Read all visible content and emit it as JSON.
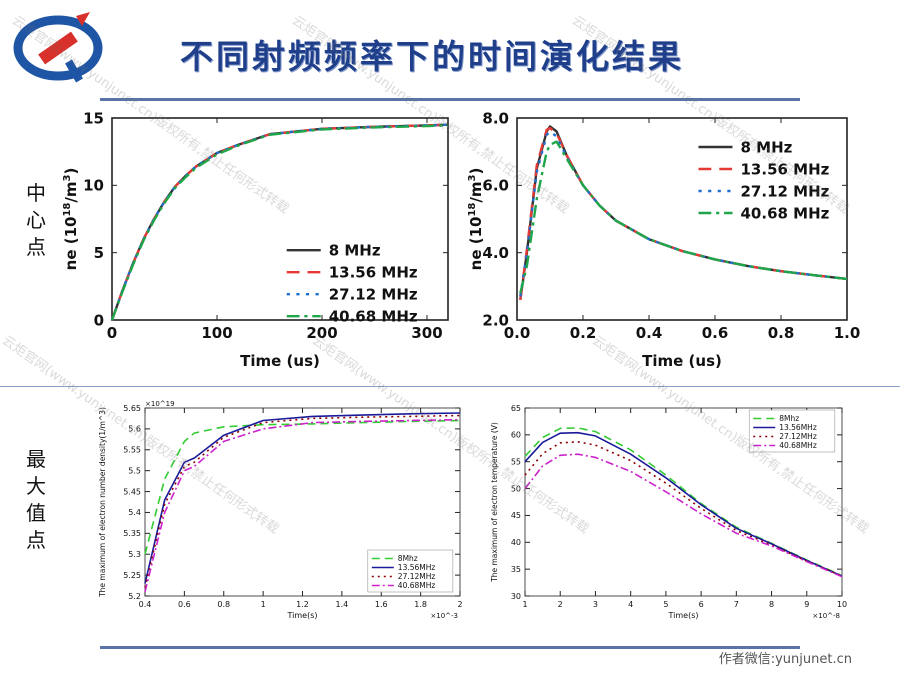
{
  "page": {
    "title": "不同射频频率下的时间演化结果",
    "side_label_top": "中心点",
    "side_label_bottom": "最大值点",
    "footer": "作者微信:yunjunet.cn",
    "watermark": "云炬官网(www.yunjunet.cn)版权所有,禁止任何形式转载",
    "colors": {
      "title": "#1f3f8a",
      "rule": "#5a74a8",
      "logo_red": "#d8302a",
      "logo_blue": "#1f55a5"
    }
  },
  "chart_data": [
    {
      "type": "line",
      "ylabel": "ne (10^18/m^3)",
      "ylabel_parts": {
        "base": "ne (10",
        "exp1": "18",
        "mid": "/m",
        "exp2": "3",
        "end": ")"
      },
      "xlabel": "Time (us)",
      "xlim": [
        0,
        320
      ],
      "ylim": [
        0,
        15
      ],
      "xticks": [
        0,
        100,
        200,
        300
      ],
      "yticks": [
        0,
        5,
        10,
        15
      ],
      "legend_position": "bottom-right",
      "x": [
        0,
        10,
        20,
        30,
        40,
        50,
        60,
        70,
        80,
        100,
        120,
        150,
        200,
        250,
        300,
        320
      ],
      "series": [
        {
          "name": "8 MHz",
          "color": "#333333",
          "dash": "solid",
          "values": [
            0,
            2.2,
            4.2,
            6.0,
            7.5,
            8.8,
            9.9,
            10.7,
            11.4,
            12.4,
            13.0,
            13.8,
            14.2,
            14.35,
            14.45,
            14.5
          ]
        },
        {
          "name": "13.56 MHz",
          "color": "#e53935",
          "dash": "dash",
          "values": [
            0,
            2.2,
            4.2,
            6.0,
            7.5,
            8.8,
            9.9,
            10.7,
            11.4,
            12.4,
            13.0,
            13.8,
            14.2,
            14.35,
            14.45,
            14.5
          ]
        },
        {
          "name": "27.12 MHz",
          "color": "#1e6fd0",
          "dash": "dot",
          "values": [
            0,
            2.2,
            4.2,
            6.0,
            7.5,
            8.8,
            9.9,
            10.7,
            11.4,
            12.4,
            13.0,
            13.8,
            14.2,
            14.35,
            14.45,
            14.5
          ]
        },
        {
          "name": "40.68 MHz",
          "color": "#1fa64a",
          "dash": "dashdot",
          "values": [
            0,
            2.1,
            4.1,
            5.9,
            7.4,
            8.7,
            9.8,
            10.6,
            11.3,
            12.3,
            12.95,
            13.75,
            14.15,
            14.3,
            14.4,
            14.45
          ]
        }
      ]
    },
    {
      "type": "line",
      "ylabel": "ne (10^18/m^3)",
      "ylabel_parts": {
        "base": "ne (10",
        "exp1": "18",
        "mid": "/m",
        "exp2": "3",
        "end": ")"
      },
      "xlabel": "Time (us)",
      "xlim": [
        0,
        1.0
      ],
      "ylim": [
        2,
        8
      ],
      "xticks": [
        0.0,
        0.2,
        0.4,
        0.6,
        0.8,
        1.0
      ],
      "yticks": [
        2,
        4,
        6,
        8
      ],
      "tick_format": "1dec",
      "legend_position": "top-right",
      "x": [
        0.01,
        0.03,
        0.06,
        0.09,
        0.1,
        0.12,
        0.15,
        0.2,
        0.25,
        0.3,
        0.4,
        0.5,
        0.6,
        0.7,
        0.8,
        0.9,
        1.0
      ],
      "series": [
        {
          "name": "8 MHz",
          "color": "#333333",
          "dash": "solid",
          "values": [
            2.6,
            4.0,
            6.5,
            7.6,
            7.75,
            7.6,
            6.9,
            6.0,
            5.4,
            4.95,
            4.4,
            4.05,
            3.8,
            3.6,
            3.45,
            3.33,
            3.22
          ]
        },
        {
          "name": "13.56 MHz",
          "color": "#e53935",
          "dash": "dash",
          "values": [
            2.6,
            4.1,
            6.6,
            7.65,
            7.7,
            7.55,
            6.9,
            6.0,
            5.4,
            4.95,
            4.4,
            4.05,
            3.8,
            3.6,
            3.45,
            3.33,
            3.22
          ]
        },
        {
          "name": "27.12 MHz",
          "color": "#1e6fd0",
          "dash": "dot",
          "values": [
            2.7,
            4.0,
            6.4,
            7.5,
            7.6,
            7.45,
            6.85,
            6.0,
            5.4,
            4.95,
            4.4,
            4.05,
            3.8,
            3.6,
            3.45,
            3.33,
            3.22
          ]
        },
        {
          "name": "40.68 MHz",
          "color": "#1fa64a",
          "dash": "dashdot",
          "values": [
            2.8,
            3.6,
            5.6,
            7.0,
            7.2,
            7.3,
            6.8,
            6.0,
            5.4,
            4.95,
            4.4,
            4.05,
            3.8,
            3.6,
            3.45,
            3.33,
            3.22
          ]
        }
      ]
    },
    {
      "type": "line",
      "ylabel": "The maximum of electron number density(1/m^3)",
      "xlabel": "Time(s)",
      "x_multiplier": "×10^-3",
      "y_multiplier": "×10^19",
      "xlim": [
        0.4,
        2.0
      ],
      "ylim": [
        5.2,
        5.65
      ],
      "xticks": [
        0.4,
        0.6,
        0.8,
        1,
        1.2,
        1.4,
        1.6,
        1.8,
        2
      ],
      "yticks": [
        5.2,
        5.25,
        5.3,
        5.35,
        5.4,
        5.45,
        5.5,
        5.55,
        5.6,
        5.65
      ],
      "legend_position": "bottom-right",
      "x": [
        0.4,
        0.5,
        0.6,
        0.65,
        0.8,
        1.0,
        1.25,
        1.5,
        1.75,
        2.0
      ],
      "series": [
        {
          "name": "8Mhz",
          "color": "#33cc33",
          "dash": "dash",
          "values": [
            5.3,
            5.48,
            5.57,
            5.59,
            5.605,
            5.61,
            5.612,
            5.615,
            5.618,
            5.62
          ]
        },
        {
          "name": "13.56MHz",
          "color": "#1a1a9a",
          "dash": "solid",
          "values": [
            5.23,
            5.43,
            5.52,
            5.53,
            5.585,
            5.62,
            5.63,
            5.633,
            5.636,
            5.638
          ]
        },
        {
          "name": "27.12MHz",
          "color": "#8b0000",
          "dash": "dot",
          "values": [
            5.22,
            5.42,
            5.51,
            5.52,
            5.58,
            5.615,
            5.625,
            5.628,
            5.63,
            5.632
          ]
        },
        {
          "name": "40.68MHz",
          "color": "#cc22cc",
          "dash": "dashdot",
          "values": [
            5.21,
            5.4,
            5.5,
            5.51,
            5.57,
            5.6,
            5.615,
            5.618,
            5.62,
            5.622
          ]
        }
      ]
    },
    {
      "type": "line",
      "ylabel": "The maximum of electron temperature (V)",
      "xlabel": "Time(s)",
      "x_multiplier": "×10^-8",
      "xlim": [
        1,
        10
      ],
      "ylim": [
        30,
        65
      ],
      "xticks": [
        1,
        2,
        3,
        4,
        5,
        6,
        7,
        8,
        9,
        10
      ],
      "yticks": [
        30,
        35,
        40,
        45,
        50,
        55,
        60,
        65
      ],
      "legend_position": "top-right",
      "x": [
        1,
        1.5,
        2,
        2.5,
        3,
        4,
        5,
        6,
        7,
        8,
        9,
        10
      ],
      "series": [
        {
          "name": "8Mhz",
          "color": "#33cc33",
          "dash": "dash",
          "values": [
            56,
            59.5,
            61.2,
            61.3,
            60.6,
            57.2,
            52.5,
            47.2,
            42.8,
            39.8,
            36.7,
            33.8
          ]
        },
        {
          "name": "13.56MHz",
          "color": "#1a1a9a",
          "dash": "solid",
          "values": [
            55,
            58.6,
            60.3,
            60.4,
            59.8,
            56.4,
            52.0,
            47.0,
            42.6,
            39.7,
            36.6,
            33.7
          ]
        },
        {
          "name": "27.12MHz",
          "color": "#8b0000",
          "dash": "dot",
          "values": [
            52.5,
            56.5,
            58.5,
            58.7,
            58.1,
            55.2,
            51.0,
            46.3,
            42.2,
            39.5,
            36.5,
            33.7
          ]
        },
        {
          "name": "40.68MHz",
          "color": "#cc22cc",
          "dash": "dashdot",
          "values": [
            50,
            54.2,
            56.2,
            56.4,
            55.8,
            53.2,
            49.4,
            45.3,
            41.7,
            39.3,
            36.4,
            33.6
          ]
        }
      ]
    }
  ]
}
